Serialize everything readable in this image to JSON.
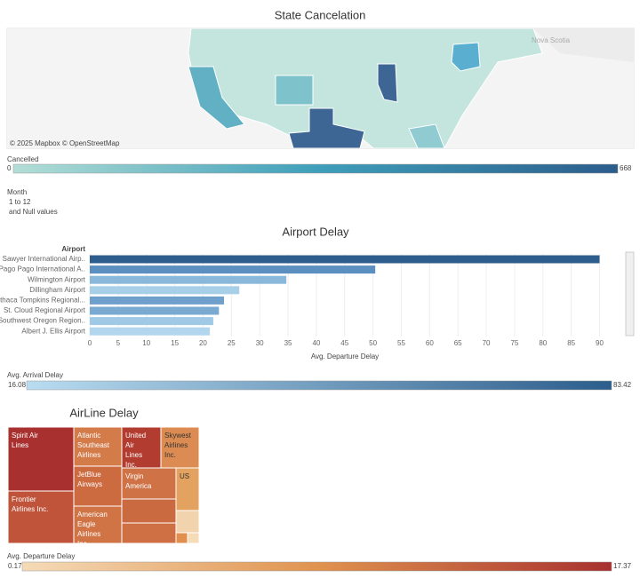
{
  "chart_data": [
    {
      "type": "map",
      "title": "State Cancelation",
      "attribution": "© 2025 Mapbox © OpenStreetMap",
      "map_label": "Nova Scotia",
      "legend": {
        "title": "Cancelled",
        "min": 0,
        "max": 668,
        "colors": [
          "#b3ded6",
          "#3f9fba",
          "#2c5d8c"
        ]
      },
      "filter": {
        "title": "Month",
        "range": "1 to 12",
        "note": "and Null values"
      }
    },
    {
      "type": "hbar",
      "title": "Airport Delay",
      "category_header": "Airport",
      "xlabel": "Avg. Departure Delay",
      "categories": [
        "Sawyer International Airp..",
        "Pago Pago International A..",
        "Wilmington Airport",
        "Dillingham Airport",
        "Ithaca Tompkins Regional...",
        "St. Cloud Regional Airport",
        "Southwest Oregon Region..",
        "Albert J. Ellis Airport"
      ],
      "values": [
        90,
        50.4,
        34.7,
        26.4,
        23.7,
        22.8,
        21.8,
        21.2
      ],
      "colors": [
        "#2c5d8c",
        "#5b8fc0",
        "#8ab8da",
        "#a7cfe8",
        "#6f9fcb",
        "#7aaad2",
        "#a0c9e6",
        "#b1d6ee"
      ],
      "xlim": [
        0,
        94
      ],
      "xticks": [
        0,
        5,
        10,
        15,
        20,
        25,
        30,
        35,
        40,
        45,
        50,
        55,
        60,
        65,
        70,
        75,
        80,
        85,
        90
      ],
      "grid": true,
      "legend": {
        "title": "Avg. Arrival Delay",
        "min": 16.08,
        "max": 83.42,
        "colors": [
          "#b9dcf0",
          "#2c5d8c"
        ]
      }
    },
    {
      "type": "treemap",
      "title": "AirLine Delay",
      "categories": [
        "Spirit Air Lines",
        "Frontier Airlines Inc.",
        "Atlantic Southeast Airlines",
        "JetBlue Airways",
        "American Eagle Airlines Inc.",
        "United Air Lines Inc.",
        "Skywest Airlines Inc.",
        "Virgin America",
        "US",
        null,
        null,
        null,
        null,
        null
      ],
      "values": [
        5328,
        4366,
        2376,
        2430,
        2268,
        2024,
        1978,
        2135,
        1248,
        1647,
        1403,
        650,
        156,
        156
      ],
      "colors": [
        "#a8312f",
        "#c0543a",
        "#d47b4a",
        "#cc6a40",
        "#d07446",
        "#b23c30",
        "#dc8c52",
        "#cf7347",
        "#e3a260",
        "#c96a41",
        "#cf7044",
        "#f1d3ad",
        "#e08f4e",
        "#f5dbb8"
      ],
      "legend": {
        "title": "Avg. Departure Delay",
        "min": 0.17,
        "max": 17.37,
        "colors": [
          "#f5dbb8",
          "#e0934f",
          "#a8312f"
        ]
      }
    }
  ]
}
